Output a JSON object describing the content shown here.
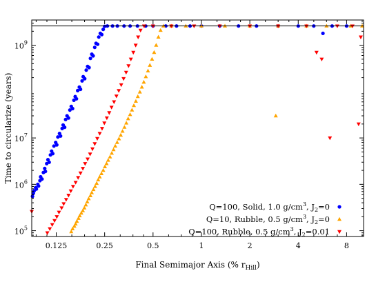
{
  "chart_data": {
    "type": "scatter",
    "xlabel": "Final Semimajor Axis (% r",
    "xlabel_sub": "Hill",
    "xlabel_close": ")",
    "ylabel": "Time to circularize (years)",
    "x_scale": "log2",
    "y_scale": "log10",
    "xlim": [
      0.088,
      10.2
    ],
    "ylim": [
      75000,
      3500000000
    ],
    "x_ticks": [
      {
        "value": 0.125,
        "label": "0.125"
      },
      {
        "value": 0.25,
        "label": "0.25"
      },
      {
        "value": 0.5,
        "label": "0.5"
      },
      {
        "value": 1,
        "label": "1"
      },
      {
        "value": 2,
        "label": "2"
      },
      {
        "value": 4,
        "label": "4"
      },
      {
        "value": 8,
        "label": "8"
      }
    ],
    "y_ticks": [
      {
        "value": 100000,
        "base": "10",
        "exp": "5"
      },
      {
        "value": 1000000,
        "base": "10",
        "exp": "6"
      },
      {
        "value": 10000000,
        "base": "10",
        "exp": "7"
      },
      {
        "value": 1000000000,
        "base": "10",
        "exp": "9"
      }
    ],
    "cap_line": 2600000000,
    "legend_position": "bottom-right",
    "series": [
      {
        "name": "Q=100, Solid, 1.0 g/cm",
        "name_sup": "3",
        "name_tail": ", J",
        "name_sub": "2",
        "name_end": "=0",
        "color": "#0000ff",
        "marker": "circle",
        "points": [
          [
            0.089,
            550000
          ],
          [
            0.09,
            640000
          ],
          [
            0.091,
            720000
          ],
          [
            0.093,
            850000
          ],
          [
            0.094,
            790000
          ],
          [
            0.096,
            1000000
          ],
          [
            0.097,
            920000
          ],
          [
            0.099,
            1200000
          ],
          [
            0.1,
            1450000
          ],
          [
            0.102,
            1300000
          ],
          [
            0.104,
            1800000
          ],
          [
            0.106,
            2200000
          ],
          [
            0.107,
            1900000
          ],
          [
            0.109,
            2800000
          ],
          [
            0.111,
            3400000
          ],
          [
            0.113,
            3000000
          ],
          [
            0.115,
            4300000
          ],
          [
            0.117,
            5200000
          ],
          [
            0.119,
            4600000
          ],
          [
            0.121,
            6700000
          ],
          [
            0.124,
            8000000
          ],
          [
            0.126,
            7100000
          ],
          [
            0.128,
            10500000
          ],
          [
            0.131,
            12500000
          ],
          [
            0.133,
            11000000
          ],
          [
            0.136,
            16000000
          ],
          [
            0.138,
            19000000
          ],
          [
            0.141,
            17000000
          ],
          [
            0.143,
            25000000
          ],
          [
            0.146,
            30000000
          ],
          [
            0.149,
            27000000
          ],
          [
            0.152,
            40000000
          ],
          [
            0.155,
            48000000
          ],
          [
            0.158,
            43000000
          ],
          [
            0.161,
            65000000
          ],
          [
            0.164,
            78000000
          ],
          [
            0.167,
            70000000
          ],
          [
            0.17,
            105000000
          ],
          [
            0.174,
            125000000
          ],
          [
            0.177,
            112000000
          ],
          [
            0.181,
            170000000
          ],
          [
            0.184,
            210000000
          ],
          [
            0.188,
            190000000
          ],
          [
            0.192,
            290000000
          ],
          [
            0.196,
            350000000
          ],
          [
            0.2,
            330000000
          ],
          [
            0.204,
            520000000
          ],
          [
            0.208,
            640000000
          ],
          [
            0.212,
            590000000
          ],
          [
            0.217,
            900000000
          ],
          [
            0.221,
            1100000000
          ],
          [
            0.226,
            1050000000
          ],
          [
            0.23,
            1500000000
          ],
          [
            0.235,
            1800000000
          ],
          [
            0.24,
            1700000000
          ],
          [
            0.245,
            2200000000
          ],
          [
            0.25,
            2550000000
          ],
          [
            0.26,
            2600000000
          ],
          [
            0.28,
            2600000000
          ],
          [
            0.3,
            2600000000
          ],
          [
            0.33,
            2600000000
          ],
          [
            0.36,
            2600000000
          ],
          [
            0.4,
            2600000000
          ],
          [
            0.45,
            2600000000
          ],
          [
            0.5,
            2600000000
          ],
          [
            0.6,
            2600000000
          ],
          [
            0.7,
            2600000000
          ],
          [
            0.85,
            2600000000
          ],
          [
            1.0,
            2600000000
          ],
          [
            1.3,
            2600000000
          ],
          [
            1.7,
            2600000000
          ],
          [
            2.2,
            2600000000
          ],
          [
            3.0,
            2600000000
          ],
          [
            4.0,
            2600000000
          ],
          [
            5.0,
            2600000000
          ],
          [
            5.7,
            1800000000
          ],
          [
            6.5,
            2600000000
          ],
          [
            8.0,
            2600000000
          ]
        ]
      },
      {
        "name": "Q=10, Rubble, 0.5 g/cm",
        "name_sup": "3",
        "name_tail": ", J",
        "name_sub": "2",
        "name_end": "=0",
        "color": "#ffa500",
        "marker": "triangle-up",
        "points": [
          [
            0.155,
            95000
          ],
          [
            0.158,
            110000
          ],
          [
            0.162,
            125000
          ],
          [
            0.165,
            140000
          ],
          [
            0.168,
            160000
          ],
          [
            0.172,
            185000
          ],
          [
            0.175,
            210000
          ],
          [
            0.179,
            240000
          ],
          [
            0.183,
            270000
          ],
          [
            0.187,
            310000
          ],
          [
            0.191,
            360000
          ],
          [
            0.195,
            420000
          ],
          [
            0.199,
            490000
          ],
          [
            0.204,
            570000
          ],
          [
            0.208,
            660000
          ],
          [
            0.213,
            770000
          ],
          [
            0.218,
            900000
          ],
          [
            0.223,
            1050000
          ],
          [
            0.228,
            1250000
          ],
          [
            0.233,
            1450000
          ],
          [
            0.239,
            1700000
          ],
          [
            0.245,
            2000000
          ],
          [
            0.251,
            2400000
          ],
          [
            0.257,
            2800000
          ],
          [
            0.263,
            3300000
          ],
          [
            0.27,
            3900000
          ],
          [
            0.277,
            4700000
          ],
          [
            0.284,
            5600000
          ],
          [
            0.291,
            6700000
          ],
          [
            0.299,
            8000000
          ],
          [
            0.307,
            9600000
          ],
          [
            0.315,
            11500000
          ],
          [
            0.323,
            14000000
          ],
          [
            0.332,
            17000000
          ],
          [
            0.341,
            21000000
          ],
          [
            0.35,
            26000000
          ],
          [
            0.36,
            32000000
          ],
          [
            0.37,
            40000000
          ],
          [
            0.38,
            50000000
          ],
          [
            0.391,
            62000000
          ],
          [
            0.402,
            78000000
          ],
          [
            0.414,
            98000000
          ],
          [
            0.426,
            125000000
          ],
          [
            0.438,
            160000000
          ],
          [
            0.451,
            210000000
          ],
          [
            0.465,
            280000000
          ],
          [
            0.478,
            370000000
          ],
          [
            0.493,
            500000000
          ],
          [
            0.508,
            700000000
          ],
          [
            0.523,
            1000000000
          ],
          [
            0.54,
            1500000000
          ],
          [
            0.557,
            2100000000
          ],
          [
            0.58,
            2600000000
          ],
          [
            0.65,
            2600000000
          ],
          [
            0.8,
            2600000000
          ],
          [
            1.0,
            2600000000
          ],
          [
            1.4,
            2600000000
          ],
          [
            2.0,
            2600000000
          ],
          [
            2.9,
            30000000
          ],
          [
            3.0,
            2600000000
          ],
          [
            4.5,
            2600000000
          ],
          [
            6.0,
            2600000000
          ],
          [
            8.5,
            2600000000
          ],
          [
            10.0,
            2600000000
          ]
        ]
      },
      {
        "name": "Q=100, Rubble, 0.5 g/cm",
        "name_sup": "3",
        "name_tail": ", J",
        "name_sub": "2",
        "name_end": "=0.01",
        "color": "#ff0000",
        "marker": "triangle-down",
        "points": [
          [
            0.088,
            260000
          ],
          [
            0.11,
            90000
          ],
          [
            0.114,
            110000
          ],
          [
            0.118,
            135000
          ],
          [
            0.122,
            165000
          ],
          [
            0.126,
            200000
          ],
          [
            0.13,
            250000
          ],
          [
            0.135,
            310000
          ],
          [
            0.139,
            380000
          ],
          [
            0.144,
            470000
          ],
          [
            0.149,
            580000
          ],
          [
            0.154,
            720000
          ],
          [
            0.159,
            900000
          ],
          [
            0.165,
            1100000
          ],
          [
            0.171,
            1400000
          ],
          [
            0.177,
            1750000
          ],
          [
            0.183,
            2200000
          ],
          [
            0.189,
            2800000
          ],
          [
            0.196,
            3500000
          ],
          [
            0.203,
            4500000
          ],
          [
            0.21,
            5800000
          ],
          [
            0.217,
            7500000
          ],
          [
            0.225,
            9700000
          ],
          [
            0.233,
            12500000
          ],
          [
            0.241,
            16000000
          ],
          [
            0.249,
            21000000
          ],
          [
            0.258,
            27000000
          ],
          [
            0.267,
            35000000
          ],
          [
            0.276,
            46000000
          ],
          [
            0.286,
            60000000
          ],
          [
            0.296,
            80000000
          ],
          [
            0.306,
            105000000
          ],
          [
            0.317,
            140000000
          ],
          [
            0.328,
            190000000
          ],
          [
            0.34,
            260000000
          ],
          [
            0.352,
            360000000
          ],
          [
            0.364,
            500000000
          ],
          [
            0.377,
            700000000
          ],
          [
            0.39,
            1000000000
          ],
          [
            0.404,
            1500000000
          ],
          [
            0.418,
            2100000000
          ],
          [
            0.44,
            2600000000
          ],
          [
            0.5,
            2600000000
          ],
          [
            0.65,
            2600000000
          ],
          [
            0.9,
            2600000000
          ],
          [
            1.3,
            2600000000
          ],
          [
            2.0,
            2600000000
          ],
          [
            3.0,
            2600000000
          ],
          [
            4.5,
            2600000000
          ],
          [
            5.2,
            700000000
          ],
          [
            5.6,
            500000000
          ],
          [
            6.3,
            10000000
          ],
          [
            7.0,
            2600000000
          ],
          [
            8.7,
            2600000000
          ],
          [
            9.5,
            20000000
          ],
          [
            9.8,
            1500000000
          ]
        ]
      }
    ]
  }
}
